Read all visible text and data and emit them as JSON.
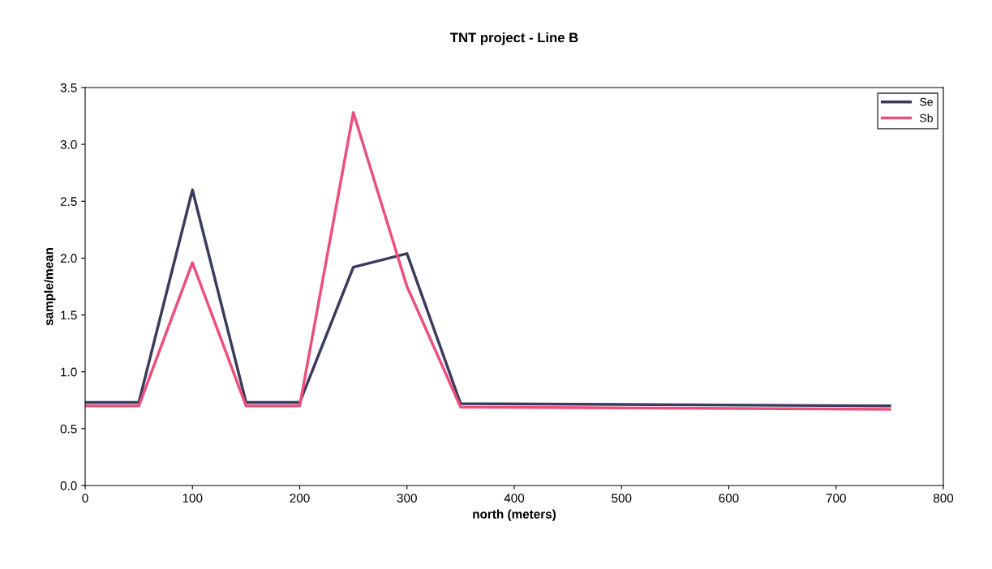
{
  "chart_data": {
    "type": "line",
    "title": "TNT project - Line B",
    "xlabel": "north (meters)",
    "ylabel": "sample/mean",
    "series": [
      {
        "name": "Se",
        "color": "#3b3a5e",
        "x": [
          0,
          50,
          100,
          150,
          200,
          250,
          300,
          350,
          750
        ],
        "values": [
          0.73,
          0.73,
          2.6,
          0.73,
          0.73,
          1.92,
          2.04,
          0.72,
          0.7
        ]
      },
      {
        "name": "Sb",
        "color": "#ec4f7c",
        "x": [
          0,
          50,
          100,
          150,
          200,
          250,
          300,
          350,
          750
        ],
        "values": [
          0.7,
          0.7,
          1.96,
          0.7,
          0.7,
          3.28,
          1.75,
          0.69,
          0.67
        ]
      }
    ],
    "xlim": [
      0,
      800
    ],
    "xticks": [
      0,
      100,
      200,
      300,
      400,
      500,
      600,
      700,
      800
    ],
    "ylim": [
      0,
      3.5
    ],
    "yticks": [
      {
        "value": 0,
        "label": "0.0"
      },
      {
        "value": 0.5,
        "label": "0.5"
      },
      {
        "value": 1,
        "label": "1.0"
      },
      {
        "value": 1.5,
        "label": "1.5"
      },
      {
        "value": 2,
        "label": "2.0"
      },
      {
        "value": 2.5,
        "label": "2.5"
      },
      {
        "value": 3,
        "label": "3.0"
      },
      {
        "value": 3.5,
        "label": "3.5"
      }
    ],
    "grid": false,
    "legend": "top right",
    "marker": "none",
    "line_style": "solid"
  }
}
